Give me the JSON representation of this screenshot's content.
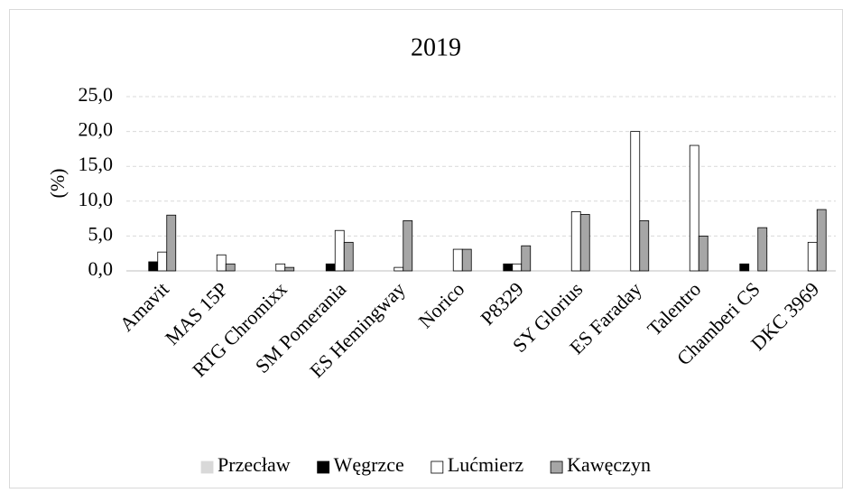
{
  "chart_data": {
    "type": "bar",
    "title": "2019",
    "y_label": "(%)",
    "categories": [
      "Amavit",
      "MAS 15P",
      "RTG Chromixx",
      "SM Pomerania",
      "ES Hemingway",
      "Norico",
      "P8329",
      "SY Glorius",
      "ES Faraday",
      "Talentro",
      "Chamberi CS",
      "DKC 3969"
    ],
    "series": [
      {
        "name": "Przecław",
        "color": "#d9d9d9",
        "values": [
          0,
          0,
          0,
          0,
          0,
          0,
          0,
          0,
          0,
          0,
          0,
          0
        ]
      },
      {
        "name": "Węgrzce",
        "color": "#000000",
        "values": [
          1.3,
          0,
          0,
          1.0,
          0,
          0,
          1.0,
          0,
          0,
          0,
          1.0,
          0
        ]
      },
      {
        "name": "Lućmierz",
        "color": "#ffffff",
        "values": [
          2.7,
          2.3,
          1.0,
          5.8,
          0.5,
          3.1,
          1.0,
          8.5,
          20.0,
          18.0,
          0,
          4.1
        ]
      },
      {
        "name": "Kawęczyn",
        "color": "#a6a6a6",
        "values": [
          8.0,
          1.0,
          0.5,
          4.1,
          7.2,
          3.1,
          3.6,
          8.1,
          7.2,
          5.0,
          6.2,
          8.8
        ]
      }
    ],
    "ylim": [
      0,
      25
    ],
    "yticks": [
      {
        "value": 0,
        "label": "0,0"
      },
      {
        "value": 5,
        "label": "5,0"
      },
      {
        "value": 10,
        "label": "10,0"
      },
      {
        "value": 15,
        "label": "15,0"
      },
      {
        "value": 20,
        "label": "20,0"
      },
      {
        "value": 25,
        "label": "25,0"
      }
    ],
    "grid": true,
    "legend": "bottom"
  }
}
